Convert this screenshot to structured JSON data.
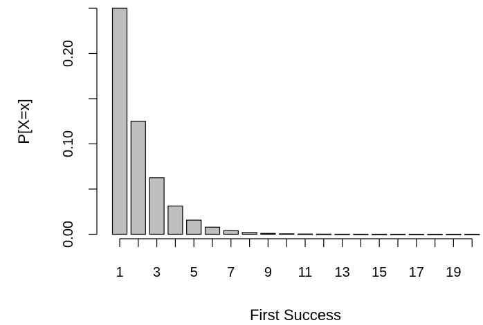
{
  "chart_data": {
    "type": "bar",
    "categories": [
      "1",
      "2",
      "3",
      "4",
      "5",
      "6",
      "7",
      "8",
      "9",
      "10",
      "11",
      "12",
      "13",
      "14",
      "15",
      "16",
      "17",
      "18",
      "19",
      "20"
    ],
    "values": [
      0.25,
      0.125,
      0.0625,
      0.03125,
      0.015625,
      0.0078125,
      0.00390625,
      0.001953125,
      0.0009765625,
      0.00048828125,
      0.000244140625,
      0.0001220703125,
      6.103515625e-05,
      3.0517578125e-05,
      1.52587890625e-05,
      7.62939453125e-06,
      3.814697265625e-06,
      1.9073486328125e-06,
      9.5367431640625e-07,
      4.76837158203125e-07
    ],
    "title": "",
    "xlabel": "First Success",
    "ylabel": "P[X=x]",
    "ylim": [
      0,
      0.25
    ],
    "y_ticks": [
      "0.00",
      "0.10",
      "0.20"
    ],
    "y_tick_values": [
      0,
      0.05,
      0.1,
      0.15,
      0.2,
      0.25
    ],
    "x_tick_labels": [
      "1",
      "3",
      "5",
      "7",
      "9",
      "11",
      "13",
      "15",
      "17",
      "19"
    ],
    "bar_color": "#bebebe",
    "grid": false
  }
}
